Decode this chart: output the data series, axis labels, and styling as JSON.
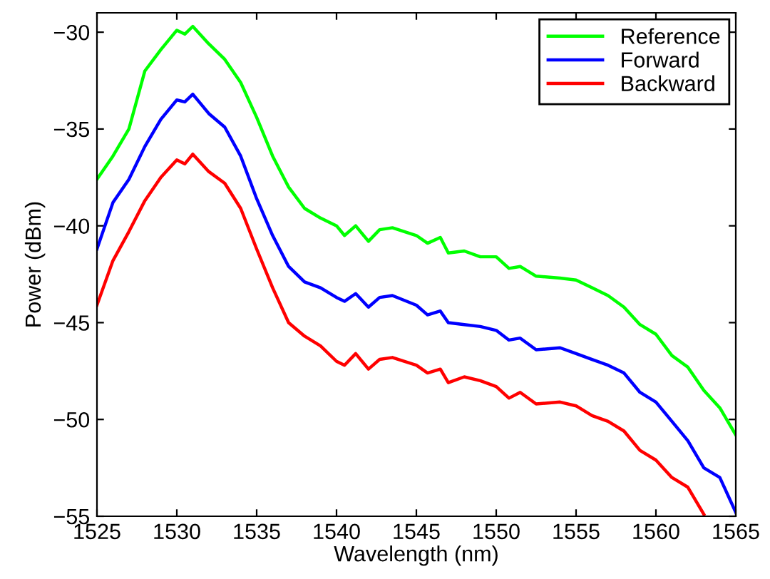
{
  "chart_data": {
    "type": "line",
    "xlabel": "Wavelength (nm)",
    "ylabel": "Power (dBm)",
    "xlim": [
      1525,
      1565
    ],
    "ylim": [
      -55,
      -29
    ],
    "xticks": [
      1525,
      1530,
      1535,
      1540,
      1545,
      1550,
      1555,
      1560,
      1565
    ],
    "yticks": [
      {
        "value": -55,
        "label": "−55"
      },
      {
        "value": -50,
        "label": "−50"
      },
      {
        "value": -45,
        "label": "−45"
      },
      {
        "value": -40,
        "label": "−40"
      },
      {
        "value": -35,
        "label": "−35"
      },
      {
        "value": -30,
        "label": "−30"
      }
    ],
    "grid": false,
    "legend": "top right",
    "line_style": "solid",
    "marker": "none",
    "x": [
      1525,
      1526,
      1527,
      1528,
      1529,
      1530,
      1530.5,
      1531,
      1532,
      1533,
      1534,
      1535,
      1536,
      1537,
      1538,
      1539,
      1540,
      1540.5,
      1541.2,
      1542,
      1542.7,
      1543.5,
      1545,
      1545.7,
      1546.5,
      1547,
      1548,
      1549,
      1550,
      1550.8,
      1551.5,
      1552.5,
      1554,
      1555,
      1556,
      1557,
      1558,
      1559,
      1560,
      1561,
      1562,
      1563,
      1564,
      1565
    ],
    "series": [
      {
        "name": "Reference",
        "color": "#00ff00",
        "values": [
          -37.6,
          -36.4,
          -35.0,
          -32.0,
          -30.9,
          -29.9,
          -30.1,
          -29.7,
          -30.6,
          -31.4,
          -32.6,
          -34.4,
          -36.4,
          -38.0,
          -39.1,
          -39.6,
          -40.0,
          -40.5,
          -40.0,
          -40.8,
          -40.2,
          -40.1,
          -40.5,
          -40.9,
          -40.6,
          -41.4,
          -41.3,
          -41.6,
          -41.6,
          -42.2,
          -42.1,
          -42.6,
          -42.7,
          -42.8,
          -43.2,
          -43.6,
          -44.2,
          -45.1,
          -45.6,
          -46.7,
          -47.3,
          -48.5,
          -49.4,
          -50.8
        ]
      },
      {
        "name": "Forward",
        "color": "#0000ff",
        "values": [
          -41.2,
          -38.8,
          -37.6,
          -35.9,
          -34.5,
          -33.5,
          -33.6,
          -33.2,
          -34.2,
          -34.9,
          -36.4,
          -38.6,
          -40.5,
          -42.1,
          -42.9,
          -43.2,
          -43.7,
          -43.9,
          -43.5,
          -44.2,
          -43.7,
          -43.6,
          -44.1,
          -44.6,
          -44.4,
          -45.0,
          -45.1,
          -45.2,
          -45.4,
          -45.9,
          -45.8,
          -46.4,
          -46.3,
          -46.6,
          -46.9,
          -47.2,
          -47.6,
          -48.6,
          -49.1,
          -50.1,
          -51.1,
          -52.5,
          -53.0,
          -54.8
        ]
      },
      {
        "name": "Backward",
        "color": "#ff0000",
        "values": [
          -44.1,
          -41.8,
          -40.3,
          -38.7,
          -37.5,
          -36.6,
          -36.8,
          -36.3,
          -37.2,
          -37.8,
          -39.1,
          -41.2,
          -43.2,
          -45.0,
          -45.7,
          -46.2,
          -47.0,
          -47.2,
          -46.6,
          -47.4,
          -46.9,
          -46.8,
          -47.2,
          -47.6,
          -47.4,
          -48.1,
          -47.8,
          -48.0,
          -48.3,
          -48.9,
          -48.6,
          -49.2,
          -49.1,
          -49.3,
          -49.8,
          -50.1,
          -50.6,
          -51.6,
          -52.1,
          -53.0,
          -53.5,
          -54.9,
          null,
          null
        ]
      }
    ]
  }
}
